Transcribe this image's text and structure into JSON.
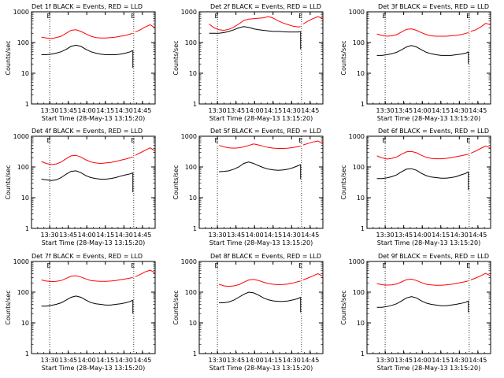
{
  "figure": {
    "common": {
      "ylabel": "Counts/sec",
      "xlabel": "Start Time (28-May-13 13:15:20)",
      "xticks": [
        "13:30",
        "13:45",
        "14:00",
        "14:15",
        "14:30",
        "14:45"
      ],
      "yticks": [
        "1",
        "10",
        "100",
        "1000"
      ],
      "marker_label": "E",
      "colors": {
        "events": "#000000",
        "lld": "#ff0000",
        "axes": "#000000"
      },
      "xlim_minutes_after_start": [
        0,
        100
      ],
      "ylim": [
        1,
        1000
      ],
      "yscale": "log",
      "event_markers_minutes_after_start": [
        14.7,
        82.7
      ]
    }
  },
  "chart_data": [
    {
      "type": "line",
      "title": "Det 1f BLACK = Events, RED = LLD",
      "x": [
        8,
        12,
        16,
        20,
        24,
        28,
        32,
        36,
        40,
        44,
        48,
        52,
        56,
        60,
        64,
        68,
        72,
        76,
        80,
        82
      ],
      "series": [
        {
          "name": "Events",
          "color": "#000000",
          "values": [
            40,
            40,
            42,
            45,
            50,
            60,
            75,
            82,
            75,
            60,
            50,
            45,
            42,
            40,
            40,
            40,
            42,
            45,
            50,
            55
          ]
        },
        {
          "name": "LLD",
          "color": "#ff0000",
          "values": [
            150,
            140,
            135,
            145,
            160,
            200,
            250,
            260,
            230,
            190,
            160,
            145,
            140,
            140,
            145,
            150,
            160,
            170,
            190,
            200
          ]
        },
        {
          "name": "LLD",
          "color": "#ff0000",
          "x": [
            84,
            88,
            92,
            96,
            100
          ],
          "values": [
            220,
            260,
            320,
            380,
            300
          ]
        }
      ],
      "drop": {
        "x": 82,
        "to": 15
      }
    },
    {
      "type": "line",
      "title": "Det 2f BLACK = Events, RED = LLD",
      "x": [
        8,
        12,
        16,
        20,
        24,
        28,
        32,
        36,
        40,
        44,
        48,
        52,
        56,
        60,
        64,
        68,
        72,
        76,
        80,
        82
      ],
      "series": [
        {
          "name": "Events",
          "color": "#000000",
          "values": [
            200,
            200,
            200,
            210,
            230,
            260,
            300,
            330,
            310,
            280,
            260,
            250,
            240,
            230,
            230,
            225,
            220,
            220,
            220,
            230
          ]
        },
        {
          "name": "LLD",
          "color": "#ff0000",
          "values": [
            400,
            300,
            260,
            250,
            270,
            320,
            400,
            520,
            580,
            600,
            620,
            640,
            700,
            620,
            500,
            430,
            380,
            340,
            320,
            330
          ]
        },
        {
          "name": "LLD",
          "color": "#ff0000",
          "x": [
            84,
            88,
            92,
            96,
            100
          ],
          "values": [
            400,
            500,
            600,
            700,
            600
          ]
        }
      ],
      "drop": {
        "x": 82,
        "to": 60
      }
    },
    {
      "type": "line",
      "title": "Det 3f BLACK = Events, RED = LLD",
      "x": [
        8,
        12,
        16,
        20,
        24,
        28,
        32,
        36,
        40,
        44,
        48,
        52,
        56,
        60,
        64,
        68,
        72,
        76,
        80,
        82
      ],
      "series": [
        {
          "name": "Events",
          "color": "#000000",
          "values": [
            38,
            38,
            40,
            43,
            48,
            58,
            72,
            80,
            72,
            58,
            48,
            43,
            40,
            38,
            38,
            38,
            40,
            42,
            45,
            50
          ]
        },
        {
          "name": "LLD",
          "color": "#ff0000",
          "values": [
            190,
            170,
            160,
            165,
            180,
            220,
            270,
            280,
            250,
            210,
            180,
            165,
            160,
            160,
            160,
            165,
            170,
            180,
            200,
            210
          ]
        },
        {
          "name": "LLD",
          "color": "#ff0000",
          "x": [
            84,
            88,
            92,
            96,
            100
          ],
          "values": [
            230,
            260,
            320,
            420,
            380
          ]
        }
      ],
      "drop": {
        "x": 82,
        "to": 20
      }
    },
    {
      "type": "line",
      "title": "Det 4f BLACK = Events, RED = LLD",
      "x": [
        8,
        12,
        16,
        20,
        24,
        28,
        32,
        36,
        40,
        44,
        48,
        52,
        56,
        60,
        64,
        68,
        72,
        76,
        80,
        82
      ],
      "series": [
        {
          "name": "Events",
          "color": "#000000",
          "values": [
            40,
            38,
            36,
            38,
            45,
            58,
            72,
            75,
            65,
            52,
            45,
            42,
            40,
            40,
            42,
            45,
            50,
            55,
            60,
            65
          ]
        },
        {
          "name": "LLD",
          "color": "#ff0000",
          "values": [
            150,
            130,
            120,
            125,
            145,
            185,
            230,
            240,
            210,
            170,
            145,
            135,
            130,
            135,
            140,
            150,
            165,
            180,
            200,
            210
          ]
        },
        {
          "name": "LLD",
          "color": "#ff0000",
          "x": [
            84,
            88,
            92,
            96,
            100
          ],
          "values": [
            240,
            290,
            350,
            420,
            330
          ]
        }
      ],
      "drop": {
        "x": 82,
        "to": 15
      }
    },
    {
      "type": "line",
      "title": "Det 5f BLACK = Events, RED = LLD",
      "x": [
        16,
        20,
        24,
        28,
        32,
        36,
        40,
        44,
        48,
        52,
        56,
        60,
        64,
        68,
        72,
        76,
        80,
        82
      ],
      "series": [
        {
          "name": "Events",
          "color": "#000000",
          "values": [
            70,
            72,
            75,
            85,
            100,
            130,
            145,
            130,
            110,
            95,
            85,
            80,
            78,
            80,
            85,
            95,
            110,
            120
          ]
        },
        {
          "name": "LLD",
          "color": "#ff0000",
          "values": [
            500,
            450,
            420,
            410,
            420,
            450,
            500,
            560,
            520,
            470,
            430,
            410,
            400,
            400,
            410,
            430,
            460,
            480
          ]
        },
        {
          "name": "LLD",
          "color": "#ff0000",
          "x": [
            84,
            88,
            92,
            96,
            100
          ],
          "values": [
            520,
            580,
            650,
            700,
            560
          ]
        }
      ],
      "drop": {
        "x": 82,
        "to": 40
      }
    },
    {
      "type": "line",
      "title": "Det 6f BLACK = Events, RED = LLD",
      "x": [
        8,
        12,
        16,
        20,
        24,
        28,
        32,
        36,
        40,
        44,
        48,
        52,
        56,
        60,
        64,
        68,
        72,
        76,
        80,
        82
      ],
      "series": [
        {
          "name": "Events",
          "color": "#000000",
          "values": [
            42,
            42,
            44,
            48,
            55,
            70,
            85,
            88,
            78,
            62,
            52,
            47,
            45,
            43,
            43,
            45,
            48,
            55,
            62,
            70
          ]
        },
        {
          "name": "LLD",
          "color": "#ff0000",
          "values": [
            230,
            200,
            180,
            190,
            210,
            260,
            310,
            320,
            290,
            240,
            205,
            190,
            185,
            185,
            190,
            200,
            215,
            230,
            250,
            260
          ]
        },
        {
          "name": "LLD",
          "color": "#ff0000",
          "x": [
            84,
            88,
            92,
            96,
            100
          ],
          "values": [
            280,
            330,
            400,
            480,
            420
          ]
        }
      ],
      "drop": {
        "x": 82,
        "to": 18
      }
    },
    {
      "type": "line",
      "title": "Det 7f BLACK = Events, RED = LLD",
      "x": [
        8,
        12,
        16,
        20,
        24,
        28,
        32,
        36,
        40,
        44,
        48,
        52,
        56,
        60,
        64,
        68,
        72,
        76,
        80,
        82
      ],
      "series": [
        {
          "name": "Events",
          "color": "#000000",
          "values": [
            35,
            35,
            37,
            40,
            45,
            55,
            68,
            75,
            68,
            55,
            46,
            42,
            40,
            38,
            38,
            40,
            42,
            45,
            50,
            55
          ]
        },
        {
          "name": "LLD",
          "color": "#ff0000",
          "values": [
            250,
            230,
            220,
            225,
            240,
            280,
            330,
            340,
            310,
            270,
            240,
            230,
            225,
            225,
            230,
            240,
            255,
            270,
            290,
            300
          ]
        },
        {
          "name": "LLD",
          "color": "#ff0000",
          "x": [
            84,
            88,
            92,
            96,
            100
          ],
          "values": [
            320,
            380,
            460,
            520,
            420
          ]
        }
      ],
      "drop": {
        "x": 82,
        "to": 20
      }
    },
    {
      "type": "line",
      "title": "Det 8f BLACK = Events, RED = LLD",
      "x": [
        16,
        20,
        24,
        28,
        32,
        36,
        40,
        44,
        48,
        52,
        56,
        60,
        64,
        68,
        72,
        76,
        80,
        82
      ],
      "series": [
        {
          "name": "Events",
          "color": "#000000",
          "values": [
            45,
            45,
            48,
            55,
            68,
            85,
            100,
            95,
            80,
            65,
            56,
            52,
            50,
            50,
            52,
            56,
            62,
            68
          ]
        },
        {
          "name": "LLD",
          "color": "#ff0000",
          "values": [
            180,
            160,
            155,
            160,
            175,
            210,
            250,
            260,
            240,
            210,
            190,
            180,
            175,
            178,
            185,
            200,
            220,
            230
          ]
        },
        {
          "name": "LLD",
          "color": "#ff0000",
          "x": [
            84,
            88,
            92,
            96,
            100
          ],
          "values": [
            250,
            290,
            340,
            400,
            330
          ]
        }
      ],
      "drop": {
        "x": 82,
        "to": 22
      }
    },
    {
      "type": "line",
      "title": "Det 9f BLACK = Events, RED = LLD",
      "x": [
        8,
        12,
        16,
        20,
        24,
        28,
        32,
        36,
        40,
        44,
        48,
        52,
        56,
        60,
        64,
        68,
        72,
        76,
        80,
        82
      ],
      "series": [
        {
          "name": "Events",
          "color": "#000000",
          "values": [
            32,
            32,
            34,
            37,
            42,
            52,
            65,
            72,
            65,
            52,
            44,
            40,
            38,
            36,
            36,
            38,
            40,
            43,
            47,
            52
          ]
        },
        {
          "name": "LLD",
          "color": "#ff0000",
          "values": [
            190,
            175,
            170,
            172,
            185,
            215,
            255,
            265,
            240,
            205,
            180,
            172,
            168,
            168,
            172,
            180,
            192,
            205,
            222,
            232
          ]
        },
        {
          "name": "LLD",
          "color": "#ff0000",
          "x": [
            84,
            88,
            92,
            96,
            100
          ],
          "values": [
            250,
            290,
            340,
            410,
            340
          ]
        }
      ],
      "drop": {
        "x": 82,
        "to": 22
      }
    }
  ]
}
